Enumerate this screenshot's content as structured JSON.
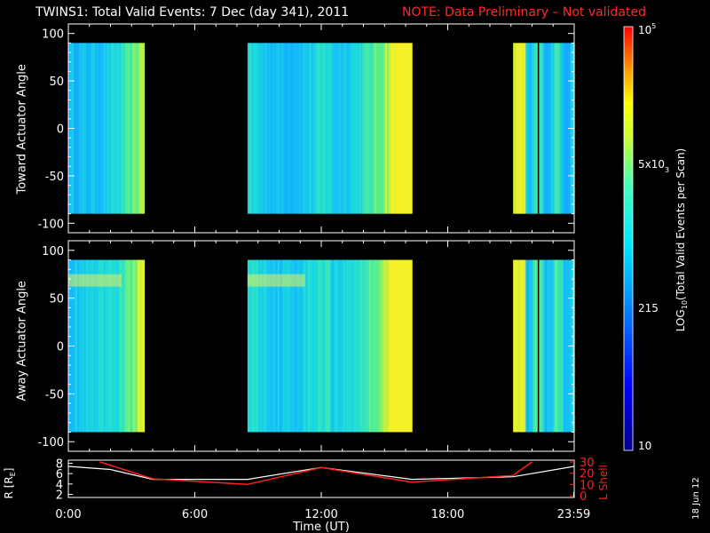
{
  "title": {
    "main": "TWINS1: Total Valid Events:  7 Dec (day 341), 2011",
    "note": "NOTE: Data Preliminary – Not validated"
  },
  "colors": {
    "note_red": "#ff2a2a",
    "axis": "#ffffff",
    "lshell_red": "#ff2020"
  },
  "panels": {
    "toward": {
      "ylabel": "Toward Actuator Angle",
      "ylim": [
        -110,
        110
      ],
      "yticks": [
        "100",
        "50",
        "0",
        "-50",
        "-100"
      ]
    },
    "away": {
      "ylabel": "Away Actuator Angle",
      "ylim": [
        -110,
        110
      ],
      "yticks": [
        "100",
        "50",
        "0",
        "-50",
        "-100"
      ]
    }
  },
  "colorbar": {
    "label": "LOG10(Total Valid Events per Scan)",
    "label_parts": {
      "pre": "LOG",
      "sub": "10",
      "post": "(Total Valid Events per Scan)"
    },
    "ticks": {
      "top": "10",
      "top_sup": "5",
      "mid": "5x10",
      "mid_sup": "3",
      "low": "215",
      "bottom": "10"
    }
  },
  "orbit": {
    "ylabel_left": "R [RE]",
    "ylabel_left_parts": {
      "pre": "R [R",
      "sub": "E",
      "post": "]"
    },
    "ylabel_right": "L Shell",
    "left_ticks": [
      "8",
      "6",
      "4",
      "2"
    ],
    "right_ticks": [
      "30",
      "20",
      "10",
      "0"
    ]
  },
  "xaxis": {
    "label": "Time (UT)",
    "ticks": [
      "0:00",
      "6:00",
      "12:00",
      "18:00",
      "23:59"
    ]
  },
  "footer_date": "18 Jun 12",
  "chart_data": {
    "type": "heatmap",
    "title": "TWINS1: Total Valid Events:  7 Dec (day 341), 2011",
    "x_units": "hours UT",
    "xlim": [
      0,
      24
    ],
    "ylim": [
      -110,
      110
    ],
    "colorscale": "log10, 10 to 1e5",
    "clim": [
      10,
      100000
    ],
    "data_intervals_hours": [
      [
        0.0,
        3.6
      ],
      [
        8.5,
        16.3
      ],
      [
        21.1,
        24.0
      ]
    ],
    "dominant_level": "about 1e3 to 5e3 events per scan",
    "orbit_R_RE": {
      "x": [
        0,
        2,
        4,
        8.5,
        12,
        16.3,
        21.1,
        24
      ],
      "y": [
        7.4,
        6.8,
        4.9,
        4.9,
        7.2,
        4.9,
        5.4,
        7.4
      ]
    },
    "orbit_L_shell": {
      "x": [
        1.5,
        4,
        8.5,
        12,
        16.3,
        21.1,
        22
      ],
      "y": [
        30,
        15,
        10,
        25,
        12,
        18,
        30
      ]
    }
  }
}
